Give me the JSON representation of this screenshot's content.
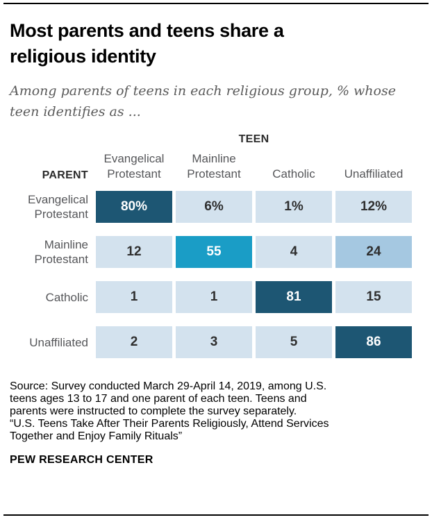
{
  "header": {
    "title": "Most parents and teens share a religious identity",
    "title_lines": [
      "Most parents and teens share a",
      "religious identity"
    ],
    "subtitle": "Among parents of teens in each religious group, % whose teen identifies as ...",
    "subtitle_lines": [
      "Among parents of teens in each religious group, % whose",
      "teen identifies as ..."
    ]
  },
  "table": {
    "axis_top_label": "TEEN",
    "axis_left_label": "PARENT",
    "columns": [
      "Evangelical Protestant",
      "Mainline Protestant",
      "Catholic",
      "Unaffiliated"
    ],
    "rows": [
      {
        "label": "Evangelical Protestant",
        "values": [
          "80%",
          "6%",
          "1%",
          "12%"
        ]
      },
      {
        "label": "Mainline Protestant",
        "values": [
          "12",
          "55",
          "4",
          "24"
        ]
      },
      {
        "label": "Catholic",
        "values": [
          "1",
          "1",
          "81",
          "15"
        ]
      },
      {
        "label": "Unaffiliated",
        "values": [
          "2",
          "3",
          "5",
          "86"
        ]
      }
    ],
    "shades": [
      [
        "dark",
        "light",
        "light",
        "light"
      ],
      [
        "light",
        "medium",
        "light",
        "medium-light"
      ],
      [
        "light",
        "light",
        "dark",
        "light"
      ],
      [
        "light",
        "light",
        "light",
        "dark"
      ]
    ]
  },
  "chart_data": {
    "type": "heatmap",
    "title": "Most parents and teens share a religious identity",
    "subtitle": "Among parents of teens in each religious group, % whose teen identifies as ...",
    "x_axis_label": "TEEN",
    "y_axis_label": "PARENT",
    "x_categories": [
      "Evangelical Protestant",
      "Mainline Protestant",
      "Catholic",
      "Unaffiliated"
    ],
    "y_categories": [
      "Evangelical Protestant",
      "Mainline Protestant",
      "Catholic",
      "Unaffiliated"
    ],
    "values": [
      [
        80,
        6,
        1,
        12
      ],
      [
        12,
        55,
        4,
        24
      ],
      [
        1,
        1,
        81,
        15
      ],
      [
        2,
        3,
        5,
        86
      ]
    ],
    "units": "percent",
    "value_range": [
      0,
      100
    ],
    "legend": "none",
    "notes": "Diagonal cells (shared identity) shown in dark blue; higher values shaded darker."
  },
  "footer": {
    "source": "Source: Survey conducted March 29-April 14, 2019, among U.S. teens ages 13 to 17 and one parent of each teen. Teens and parents were instructed to complete the survey separately.",
    "source_lines": [
      "Source: Survey conducted March 29-April 14, 2019, among U.S.",
      "teens ages 13 to 17 and one parent of each teen. Teens and",
      "parents were instructed to complete the survey separately.",
      "“U.S. Teens Take After Their Parents Religiously, Attend Services",
      "Together and Enjoy Family Rituals”"
    ],
    "brand": "PEW RESEARCH CENTER"
  },
  "colors": {
    "cell_dark": "#1d5673",
    "cell_medium": "#1a9dc6",
    "cell_medium_light": "#a5c8e1",
    "cell_light": "#d3e2ee",
    "rule": "#000000",
    "label_gray": "#555659",
    "source_gray": "#8f8f8f"
  }
}
